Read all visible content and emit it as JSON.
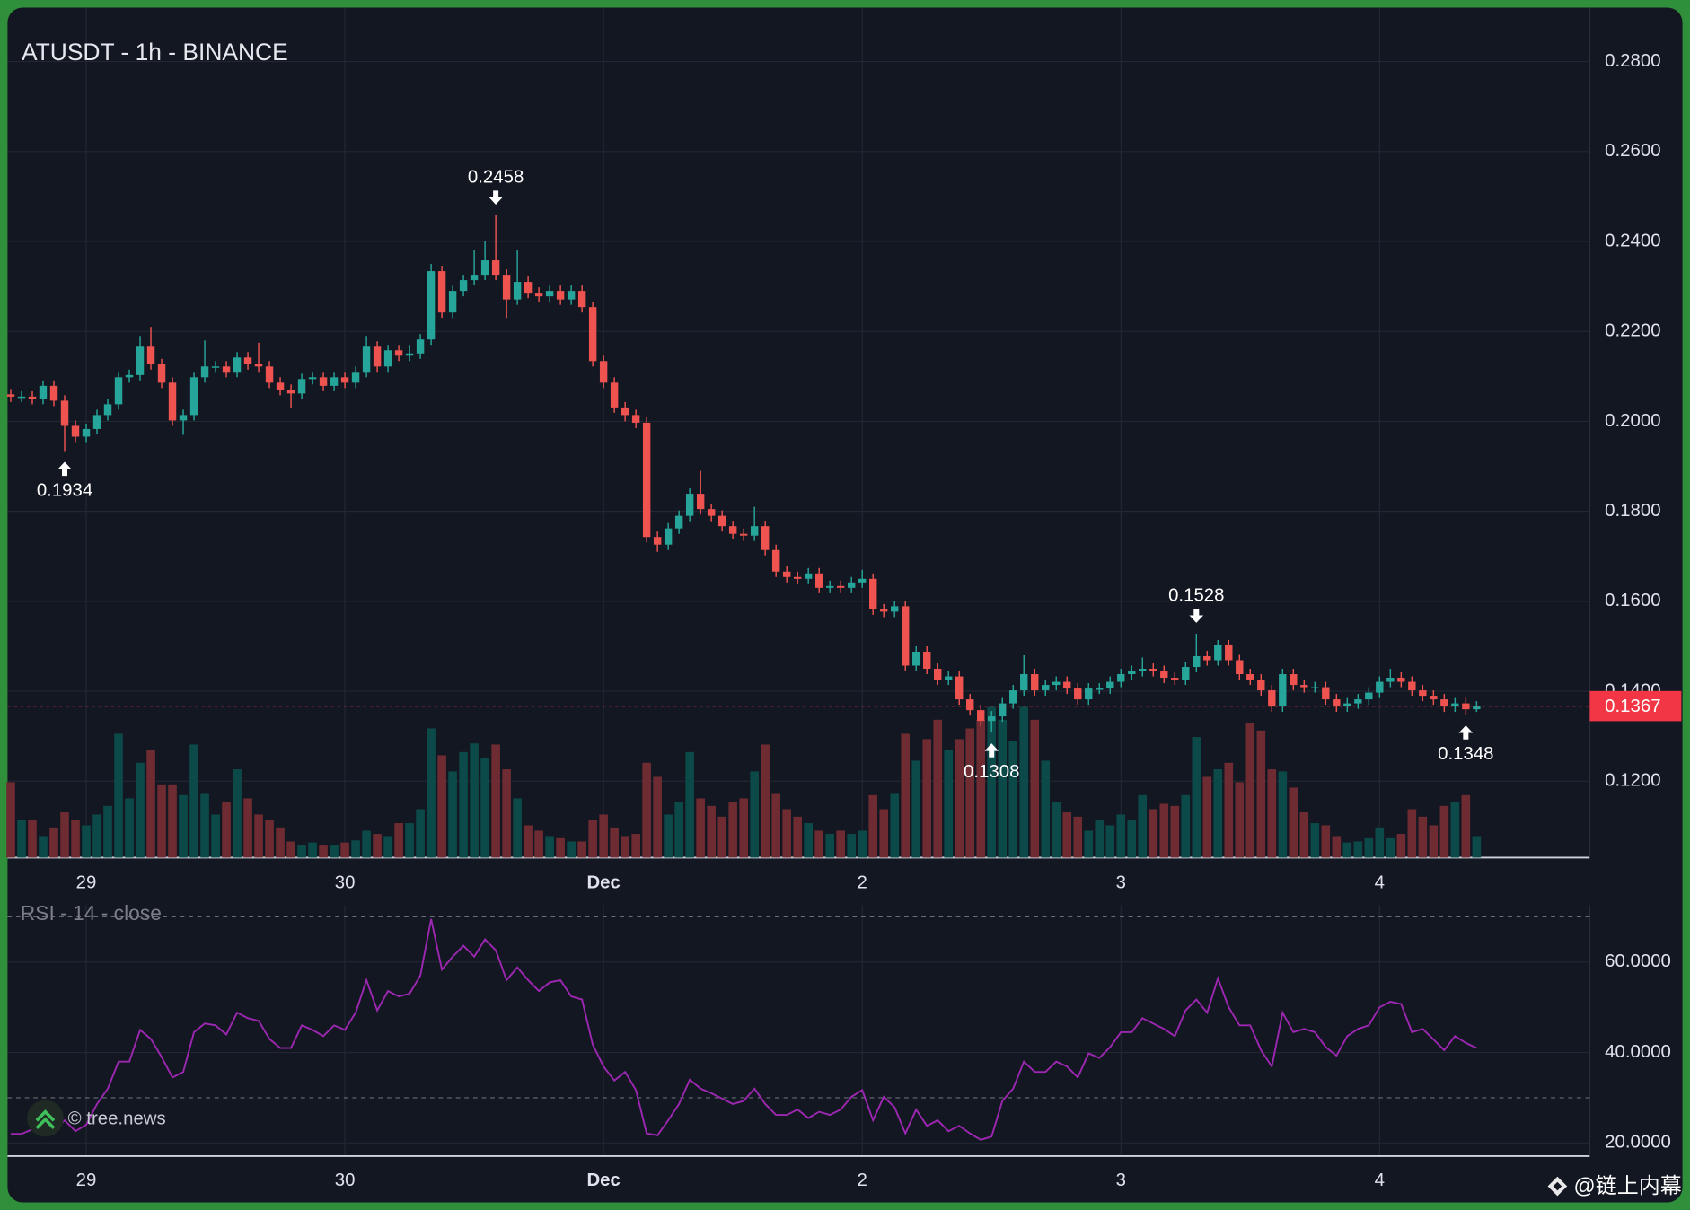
{
  "chart_data": [
    {
      "type": "candlestick",
      "title": "ATUSDT - 1h - BINANCE",
      "ohlc": [
        [
          0.206,
          0.2072,
          0.2043,
          0.2055
        ],
        [
          0.2055,
          0.2067,
          0.2043,
          0.2055
        ],
        [
          0.2055,
          0.2067,
          0.2038,
          0.205
        ],
        [
          0.205,
          0.2091,
          0.2038,
          0.2079
        ],
        [
          0.2079,
          0.2091,
          0.2034,
          0.2046
        ],
        [
          0.2046,
          0.2058,
          0.1934,
          0.199
        ],
        [
          0.199,
          0.2002,
          0.1954,
          0.1966
        ],
        [
          0.1966,
          0.1995,
          0.1954,
          0.1983
        ],
        [
          0.1983,
          0.2026,
          0.1971,
          0.2014
        ],
        [
          0.2014,
          0.205,
          0.2002,
          0.2038
        ],
        [
          0.2038,
          0.211,
          0.2026,
          0.2098
        ],
        [
          0.2098,
          0.2115,
          0.2086,
          0.2103
        ],
        [
          0.2103,
          0.219,
          0.2091,
          0.2166
        ],
        [
          0.2166,
          0.221,
          0.2115,
          0.2127
        ],
        [
          0.2127,
          0.2139,
          0.2074,
          0.2086
        ],
        [
          0.2086,
          0.2098,
          0.199,
          0.2002
        ],
        [
          0.2002,
          0.2026,
          0.197,
          0.2014
        ],
        [
          0.2014,
          0.211,
          0.2002,
          0.2098
        ],
        [
          0.2098,
          0.218,
          0.2086,
          0.2122
        ],
        [
          0.2122,
          0.2134,
          0.211,
          0.2122
        ],
        [
          0.2122,
          0.2134,
          0.2098,
          0.211
        ],
        [
          0.211,
          0.2154,
          0.2098,
          0.2142
        ],
        [
          0.2142,
          0.2154,
          0.2115,
          0.2127
        ],
        [
          0.2127,
          0.2175,
          0.211,
          0.2122
        ],
        [
          0.2122,
          0.2134,
          0.2074,
          0.2086
        ],
        [
          0.2086,
          0.2098,
          0.2058,
          0.207
        ],
        [
          0.207,
          0.2082,
          0.203,
          0.2062
        ],
        [
          0.2062,
          0.2106,
          0.205,
          0.2094
        ],
        [
          0.2094,
          0.211,
          0.2082,
          0.2098
        ],
        [
          0.2098,
          0.211,
          0.2067,
          0.2079
        ],
        [
          0.2079,
          0.211,
          0.2067,
          0.2098
        ],
        [
          0.2098,
          0.211,
          0.2074,
          0.2086
        ],
        [
          0.2086,
          0.2122,
          0.2074,
          0.211
        ],
        [
          0.211,
          0.219,
          0.2098,
          0.2166
        ],
        [
          0.2166,
          0.2178,
          0.211,
          0.2122
        ],
        [
          0.2122,
          0.217,
          0.211,
          0.2158
        ],
        [
          0.2158,
          0.217,
          0.2134,
          0.2146
        ],
        [
          0.2146,
          0.217,
          0.2134,
          0.2151
        ],
        [
          0.2151,
          0.2194,
          0.2139,
          0.2182
        ],
        [
          0.2182,
          0.235,
          0.217,
          0.2334
        ],
        [
          0.2334,
          0.2346,
          0.223,
          0.2242
        ],
        [
          0.2242,
          0.2302,
          0.223,
          0.229
        ],
        [
          0.229,
          0.2326,
          0.2278,
          0.2314
        ],
        [
          0.2314,
          0.238,
          0.2302,
          0.2326
        ],
        [
          0.2326,
          0.24,
          0.2314,
          0.2358
        ],
        [
          0.2358,
          0.2458,
          0.2314,
          0.2326
        ],
        [
          0.2326,
          0.2338,
          0.223,
          0.2271
        ],
        [
          0.2271,
          0.238,
          0.2259,
          0.231
        ],
        [
          0.231,
          0.2322,
          0.2274,
          0.2286
        ],
        [
          0.2286,
          0.2298,
          0.2266,
          0.2278
        ],
        [
          0.2278,
          0.2302,
          0.2266,
          0.229
        ],
        [
          0.229,
          0.2302,
          0.2259,
          0.2271
        ],
        [
          0.2271,
          0.2302,
          0.2259,
          0.229
        ],
        [
          0.229,
          0.2302,
          0.2242,
          0.2254
        ],
        [
          0.2254,
          0.2266,
          0.2122,
          0.2134
        ],
        [
          0.2134,
          0.2146,
          0.2074,
          0.2086
        ],
        [
          0.2086,
          0.2098,
          0.2019,
          0.2031
        ],
        [
          0.2031,
          0.2043,
          0.2,
          0.2014
        ],
        [
          0.2014,
          0.2026,
          0.1985,
          0.1997
        ],
        [
          0.1997,
          0.2009,
          0.1731,
          0.1743
        ],
        [
          0.1743,
          0.1755,
          0.171,
          0.1726
        ],
        [
          0.1726,
          0.1774,
          0.1714,
          0.1762
        ],
        [
          0.1762,
          0.1802,
          0.175,
          0.179
        ],
        [
          0.179,
          0.1851,
          0.1778,
          0.1839
        ],
        [
          0.1839,
          0.189,
          0.1793,
          0.1805
        ],
        [
          0.1805,
          0.1817,
          0.1778,
          0.179
        ],
        [
          0.179,
          0.1802,
          0.1755,
          0.1767
        ],
        [
          0.1767,
          0.1779,
          0.1738,
          0.175
        ],
        [
          0.175,
          0.1762,
          0.1734,
          0.1746
        ],
        [
          0.1746,
          0.181,
          0.1734,
          0.1767
        ],
        [
          0.1767,
          0.1779,
          0.1702,
          0.1714
        ],
        [
          0.1714,
          0.1726,
          0.1654,
          0.1666
        ],
        [
          0.1666,
          0.1678,
          0.1642,
          0.1654
        ],
        [
          0.1654,
          0.1666,
          0.1638,
          0.165
        ],
        [
          0.165,
          0.1674,
          0.1638,
          0.1662
        ],
        [
          0.1662,
          0.1674,
          0.1618,
          0.163
        ],
        [
          0.163,
          0.1646,
          0.1618,
          0.1634
        ],
        [
          0.1634,
          0.1646,
          0.1618,
          0.163
        ],
        [
          0.163,
          0.1654,
          0.1618,
          0.1642
        ],
        [
          0.1642,
          0.167,
          0.163,
          0.165
        ],
        [
          0.165,
          0.1662,
          0.157,
          0.1582
        ],
        [
          0.1582,
          0.1594,
          0.1565,
          0.1577
        ],
        [
          0.1577,
          0.1601,
          0.1565,
          0.1589
        ],
        [
          0.1589,
          0.1601,
          0.1445,
          0.1457
        ],
        [
          0.1457,
          0.15,
          0.1445,
          0.1488
        ],
        [
          0.1488,
          0.15,
          0.1438,
          0.145
        ],
        [
          0.145,
          0.1462,
          0.1414,
          0.1426
        ],
        [
          0.1426,
          0.1445,
          0.1414,
          0.1433
        ],
        [
          0.1433,
          0.1445,
          0.137,
          0.1382
        ],
        [
          0.1382,
          0.1394,
          0.1346,
          0.1358
        ],
        [
          0.1358,
          0.137,
          0.1322,
          0.1334
        ],
        [
          0.1334,
          0.1356,
          0.1308,
          0.1344
        ],
        [
          0.1344,
          0.1385,
          0.1332,
          0.1373
        ],
        [
          0.1373,
          0.1414,
          0.1361,
          0.1402
        ],
        [
          0.1402,
          0.148,
          0.139,
          0.1438
        ],
        [
          0.1438,
          0.145,
          0.139,
          0.1402
        ],
        [
          0.1402,
          0.1426,
          0.139,
          0.1414
        ],
        [
          0.1414,
          0.1433,
          0.1402,
          0.1421
        ],
        [
          0.1421,
          0.1433,
          0.1394,
          0.1406
        ],
        [
          0.1406,
          0.1418,
          0.137,
          0.1382
        ],
        [
          0.1382,
          0.1418,
          0.137,
          0.1406
        ],
        [
          0.1406,
          0.1418,
          0.1394,
          0.1406
        ],
        [
          0.1406,
          0.1433,
          0.1394,
          0.1421
        ],
        [
          0.1421,
          0.145,
          0.1409,
          0.1438
        ],
        [
          0.1438,
          0.1457,
          0.1426,
          0.1445
        ],
        [
          0.1445,
          0.1475,
          0.1433,
          0.145
        ],
        [
          0.145,
          0.1462,
          0.1433,
          0.1445
        ],
        [
          0.1445,
          0.1457,
          0.1418,
          0.143
        ],
        [
          0.143,
          0.1442,
          0.1414,
          0.1426
        ],
        [
          0.1426,
          0.1466,
          0.1414,
          0.1454
        ],
        [
          0.1454,
          0.1528,
          0.1442,
          0.1478
        ],
        [
          0.1478,
          0.149,
          0.1457,
          0.1469
        ],
        [
          0.1469,
          0.1514,
          0.1457,
          0.1502
        ],
        [
          0.1502,
          0.1514,
          0.1457,
          0.1469
        ],
        [
          0.1469,
          0.1481,
          0.1426,
          0.1438
        ],
        [
          0.1438,
          0.145,
          0.1414,
          0.1426
        ],
        [
          0.1426,
          0.1438,
          0.139,
          0.1402
        ],
        [
          0.1402,
          0.1414,
          0.1354,
          0.1366
        ],
        [
          0.1366,
          0.145,
          0.1354,
          0.1438
        ],
        [
          0.1438,
          0.145,
          0.1402,
          0.1414
        ],
        [
          0.1414,
          0.1426,
          0.1397,
          0.1409
        ],
        [
          0.1409,
          0.1421,
          0.1397,
          0.1409
        ],
        [
          0.1409,
          0.1421,
          0.137,
          0.1382
        ],
        [
          0.1382,
          0.1394,
          0.1354,
          0.1366
        ],
        [
          0.1366,
          0.1385,
          0.1354,
          0.1373
        ],
        [
          0.1373,
          0.1394,
          0.1361,
          0.1382
        ],
        [
          0.1382,
          0.1409,
          0.137,
          0.1397
        ],
        [
          0.1397,
          0.1433,
          0.1385,
          0.1421
        ],
        [
          0.1421,
          0.145,
          0.1409,
          0.143
        ],
        [
          0.143,
          0.1442,
          0.1409,
          0.1421
        ],
        [
          0.1421,
          0.1433,
          0.139,
          0.1402
        ],
        [
          0.1402,
          0.1414,
          0.1378,
          0.139
        ],
        [
          0.139,
          0.1402,
          0.137,
          0.1382
        ],
        [
          0.1382,
          0.1394,
          0.1354,
          0.1366
        ],
        [
          0.1366,
          0.1385,
          0.1354,
          0.1373
        ],
        [
          0.1373,
          0.1385,
          0.1348,
          0.136
        ],
        [
          0.136,
          0.1378,
          0.1354,
          0.1367
        ]
      ],
      "volume": [
        70,
        35,
        35,
        20,
        28,
        42,
        35,
        30,
        40,
        48,
        115,
        55,
        88,
        100,
        68,
        68,
        58,
        105,
        60,
        40,
        52,
        82,
        55,
        40,
        35,
        28,
        15,
        12,
        14,
        12,
        12,
        14,
        16,
        25,
        22,
        20,
        32,
        32,
        45,
        120,
        95,
        80,
        98,
        106,
        92,
        105,
        82,
        55,
        30,
        25,
        20,
        18,
        15,
        15,
        35,
        40,
        28,
        20,
        22,
        88,
        75,
        40,
        52,
        98,
        55,
        48,
        38,
        52,
        55,
        80,
        105,
        60,
        45,
        38,
        32,
        25,
        22,
        25,
        22,
        25,
        58,
        45,
        60,
        115,
        90,
        110,
        128,
        100,
        110,
        120,
        128,
        140,
        128,
        108,
        140,
        128,
        90,
        52,
        42,
        38,
        25,
        35,
        30,
        40,
        35,
        58,
        45,
        50,
        48,
        58,
        112,
        75,
        82,
        88,
        70,
        125,
        118,
        82,
        80,
        65,
        42,
        32,
        30,
        20,
        14,
        15,
        18,
        28,
        18,
        22,
        45,
        38,
        30,
        48,
        52,
        58,
        20
      ],
      "up_color": "#26a69a",
      "down_color": "#ef5350",
      "volume_up_color": "#0c4a49",
      "volume_down_color": "#6e2b31",
      "xlim": [
        -0.3,
        146.5
      ],
      "xticks": [
        {
          "value": 7,
          "label": "29"
        },
        {
          "value": 31,
          "label": "30"
        },
        {
          "value": 55,
          "label": "Dec"
        },
        {
          "value": 79,
          "label": "2"
        },
        {
          "value": 103,
          "label": "3"
        },
        {
          "value": 127,
          "label": "4"
        }
      ],
      "ylim": [
        0.103,
        0.292
      ],
      "yticks": [
        {
          "value": 0.28,
          "label": "0.2800"
        },
        {
          "value": 0.26,
          "label": "0.2600"
        },
        {
          "value": 0.24,
          "label": "0.2400"
        },
        {
          "value": 0.22,
          "label": "0.2200"
        },
        {
          "value": 0.2,
          "label": "0.2000"
        },
        {
          "value": 0.18,
          "label": "0.1800"
        },
        {
          "value": 0.16,
          "label": "0.1600"
        },
        {
          "value": 0.14,
          "label": "0.1400"
        },
        {
          "value": 0.12,
          "label": "0.1200"
        }
      ],
      "annotations": [
        {
          "text": "0.1934",
          "x": 5,
          "y": 0.1934
        },
        {
          "text": "0.2458",
          "x": 45,
          "y": 0.2458
        },
        {
          "text": "0.1308",
          "x": 91,
          "y": 0.1308
        },
        {
          "text": "0.1528",
          "x": 110,
          "y": 0.1528
        },
        {
          "text": "0.1348",
          "x": 135,
          "y": 0.1348
        }
      ],
      "last_price": 0.1367,
      "last_price_color": "#f23645",
      "grid": true
    },
    {
      "type": "line",
      "title": "RSI - 14 - close",
      "color": "#9c27b0",
      "values": [
        22,
        22,
        23,
        25,
        22.6,
        25,
        22.6,
        24,
        28.6,
        32,
        38,
        38,
        45,
        43,
        39,
        34.5,
        35.7,
        44.5,
        46.4,
        46,
        44,
        48.8,
        47.6,
        47,
        43,
        41,
        41,
        46,
        45,
        43.6,
        46,
        45,
        48.8,
        56,
        49.3,
        53.6,
        52.4,
        53,
        57,
        69.5,
        58.3,
        61.2,
        63.6,
        61.2,
        65,
        62.6,
        56,
        58.8,
        56,
        53.6,
        55.5,
        56,
        52.4,
        51.7,
        41.7,
        36.9,
        33.8,
        35.7,
        31.7,
        22.1,
        21.7,
        25,
        28.6,
        34,
        32,
        31,
        29.8,
        28.6,
        29.3,
        32,
        28.6,
        26.2,
        26.2,
        27.4,
        25.5,
        26.9,
        26.2,
        27.4,
        30.2,
        31.7,
        25,
        30.2,
        27.9,
        22.1,
        27.4,
        23.8,
        25,
        22.6,
        23.8,
        22.1,
        20.7,
        21.4,
        29.3,
        32,
        38,
        35.7,
        35.7,
        38,
        36.9,
        34.5,
        39.8,
        38.8,
        41.2,
        44.5,
        44.5,
        47.6,
        46.4,
        45.2,
        43.6,
        49.3,
        51.7,
        48.8,
        56.4,
        50,
        46,
        46,
        40.5,
        36.9,
        48.8,
        44.5,
        45.2,
        44.5,
        41.2,
        39.3,
        43.6,
        45.2,
        46,
        50,
        51.2,
        50.7,
        44.5,
        45.2,
        42.9,
        40.5,
        43.6,
        42.1,
        41
      ],
      "xlim": [
        -0.3,
        146.5
      ],
      "xticks": [
        {
          "value": 7,
          "label": "29"
        },
        {
          "value": 31,
          "label": "30"
        },
        {
          "value": 55,
          "label": "Dec"
        },
        {
          "value": 79,
          "label": "2"
        },
        {
          "value": 103,
          "label": "3"
        },
        {
          "value": 127,
          "label": "4"
        }
      ],
      "ylim": [
        17.1,
        72.6
      ],
      "yticks": [
        {
          "value": 60,
          "label": "60.0000"
        },
        {
          "value": 40,
          "label": "40.0000"
        },
        {
          "value": 20,
          "label": "20.0000"
        }
      ],
      "bands": [
        70,
        30
      ],
      "grid": true
    }
  ],
  "watermark": "© tree.news",
  "credit": "@链上内幕"
}
